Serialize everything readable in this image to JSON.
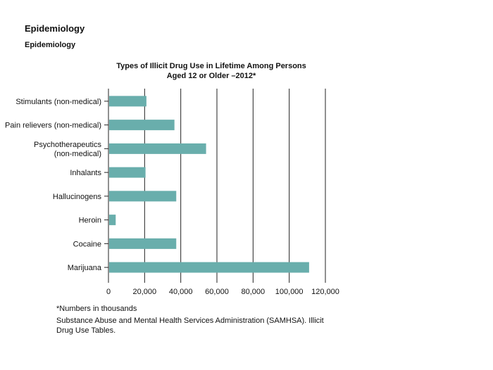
{
  "page": {
    "title": "Epidemiology",
    "subtitle": "Epidemiology"
  },
  "chart_data": {
    "type": "bar",
    "orientation": "horizontal",
    "title_lines": [
      "Types of Illicit Drug Use in Lifetime Among Persons",
      "Aged 12 or Older –2012*"
    ],
    "categories": [
      [
        "Stimulants (non-medical)"
      ],
      [
        "Pain relievers (non-medical)"
      ],
      [
        "Psychotherapeutics",
        "(non-medical)"
      ],
      [
        "Inhalants"
      ],
      [
        "Hallucinogens"
      ],
      [
        "Heroin"
      ],
      [
        "Cocaine"
      ],
      [
        "Marijuana"
      ]
    ],
    "values": [
      21000,
      36500,
      54000,
      20500,
      37500,
      4000,
      37500,
      111000
    ],
    "xlim": [
      0,
      120000
    ],
    "xticks": [
      0,
      20000,
      40000,
      60000,
      80000,
      100000,
      120000
    ],
    "xtick_labels": [
      "0",
      "20,000",
      "40,000",
      "60,000",
      "80,000",
      "100,000",
      "120,000"
    ],
    "grid": "vertical",
    "bar_color": "#69aeac"
  },
  "footnotes": {
    "note": "*Numbers in thousands",
    "source": "Substance Abuse and Mental Health Services Administration (SAMHSA). Illicit Drug Use Tables."
  }
}
